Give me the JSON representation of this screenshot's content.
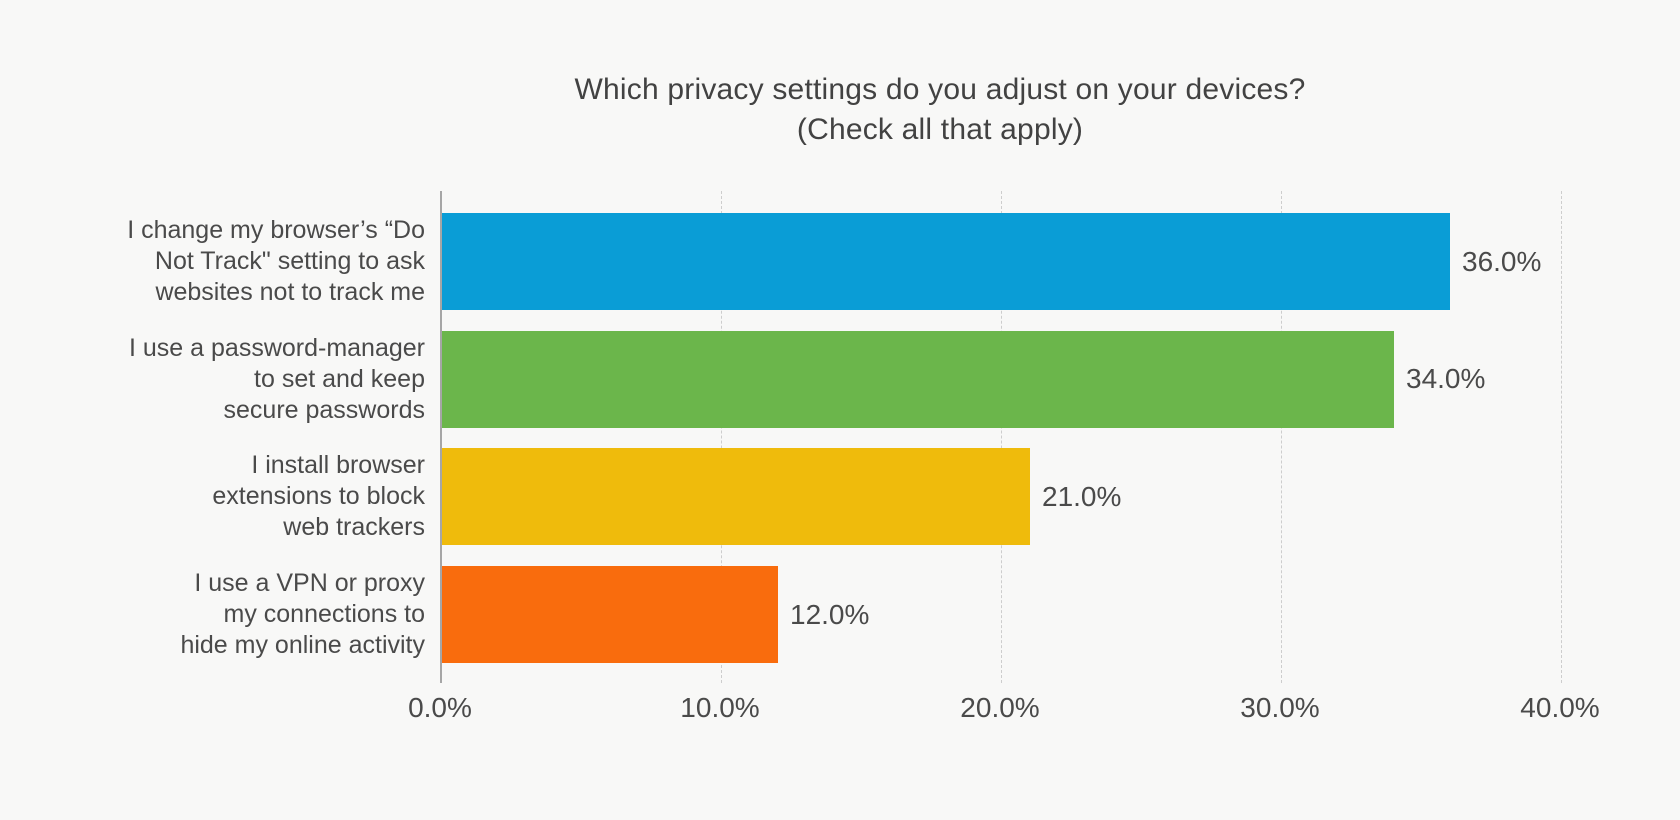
{
  "colors": {
    "background": "#F8F8F7",
    "text": "#4A4A4A",
    "title_text": "#424242",
    "axis_line": "#A6A6A6",
    "gridline": "#CDCDCD"
  },
  "chart_data": {
    "type": "bar",
    "orientation": "horizontal",
    "title": "Which privacy settings do you adjust on your devices?",
    "subtitle": "(Check all that apply)",
    "categories": [
      "I change my browser’s “Do\nNot Track\" setting to ask\nwebsites not to track me",
      "I use a password-manager\nto set and keep\nsecure passwords",
      "I install browser\nextensions to block\nweb trackers",
      "I use a VPN or proxy\nmy connections to\nhide my online activity"
    ],
    "values": [
      36.0,
      34.0,
      21.0,
      12.0
    ],
    "value_labels": [
      "36.0%",
      "34.0%",
      "21.0%",
      "12.0%"
    ],
    "bar_colors": [
      "#0A9DD6",
      "#6BB64B",
      "#EFBB0C",
      "#F96C0D"
    ],
    "xlabel": "",
    "ylabel": "",
    "xlim": [
      0,
      40
    ],
    "x_tick_values": [
      0,
      10,
      20,
      30,
      40
    ],
    "x_tick_labels": [
      "0.0%",
      "10.0%",
      "20.0%",
      "30.0%",
      "40.0%"
    ],
    "grid": "vertical-dashed",
    "legend": "none"
  }
}
